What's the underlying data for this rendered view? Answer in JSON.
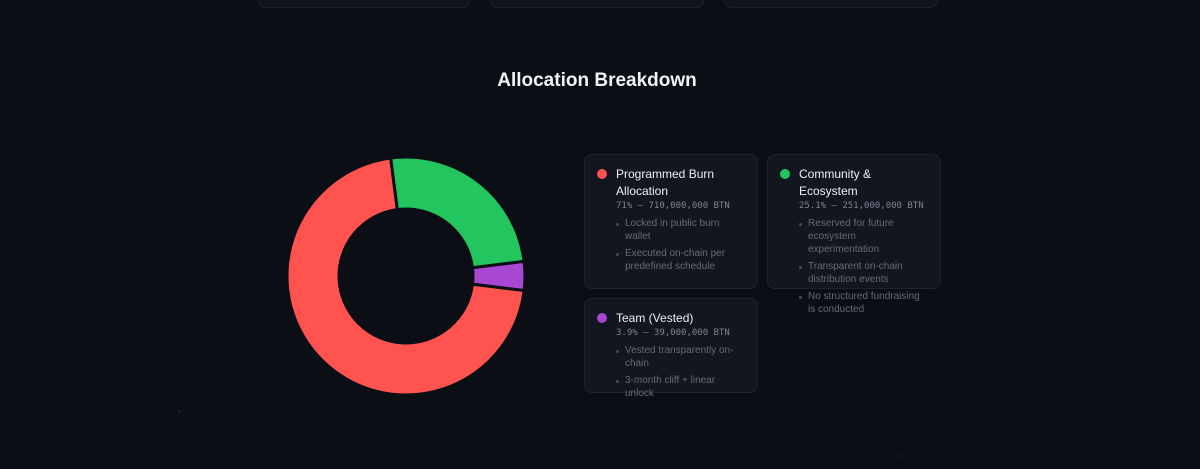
{
  "section": {
    "title": "Allocation Breakdown"
  },
  "chart_data": {
    "type": "donut",
    "title": "Allocation Breakdown",
    "series": [
      {
        "name": "Programmed Burn Allocation",
        "value": 71,
        "amount": "710,000,000 BTN",
        "color": "#ff5350"
      },
      {
        "name": "Community & Ecosystem",
        "value": 25.1,
        "amount": "251,000,000 BTN",
        "color": "#22c55e"
      },
      {
        "name": "Team (Vested)",
        "value": 3.9,
        "amount": "39,000,000 BTN",
        "color": "#a847d1"
      }
    ]
  },
  "cards": [
    {
      "name": "Programmed Burn Allocation",
      "stat": "71% — 710,000,000 BTN",
      "color": "#ff5350",
      "bullets": [
        "Locked in public burn wallet",
        "Executed on-chain per predefined schedule"
      ]
    },
    {
      "name": "Community & Ecosystem",
      "stat": "25.1% — 251,000,000 BTN",
      "color": "#22c55e",
      "bullets": [
        "Reserved for future ecosystem experimentation",
        "Transparent on-chain distribution events",
        "No structured fundraising is conducted"
      ]
    },
    {
      "name": "Team (Vested)",
      "stat": "3.9% — 39,000,000 BTN",
      "color": "#a847d1",
      "bullets": [
        "Vested transparently on-chain",
        "3-month cliff + linear unlock"
      ]
    }
  ]
}
